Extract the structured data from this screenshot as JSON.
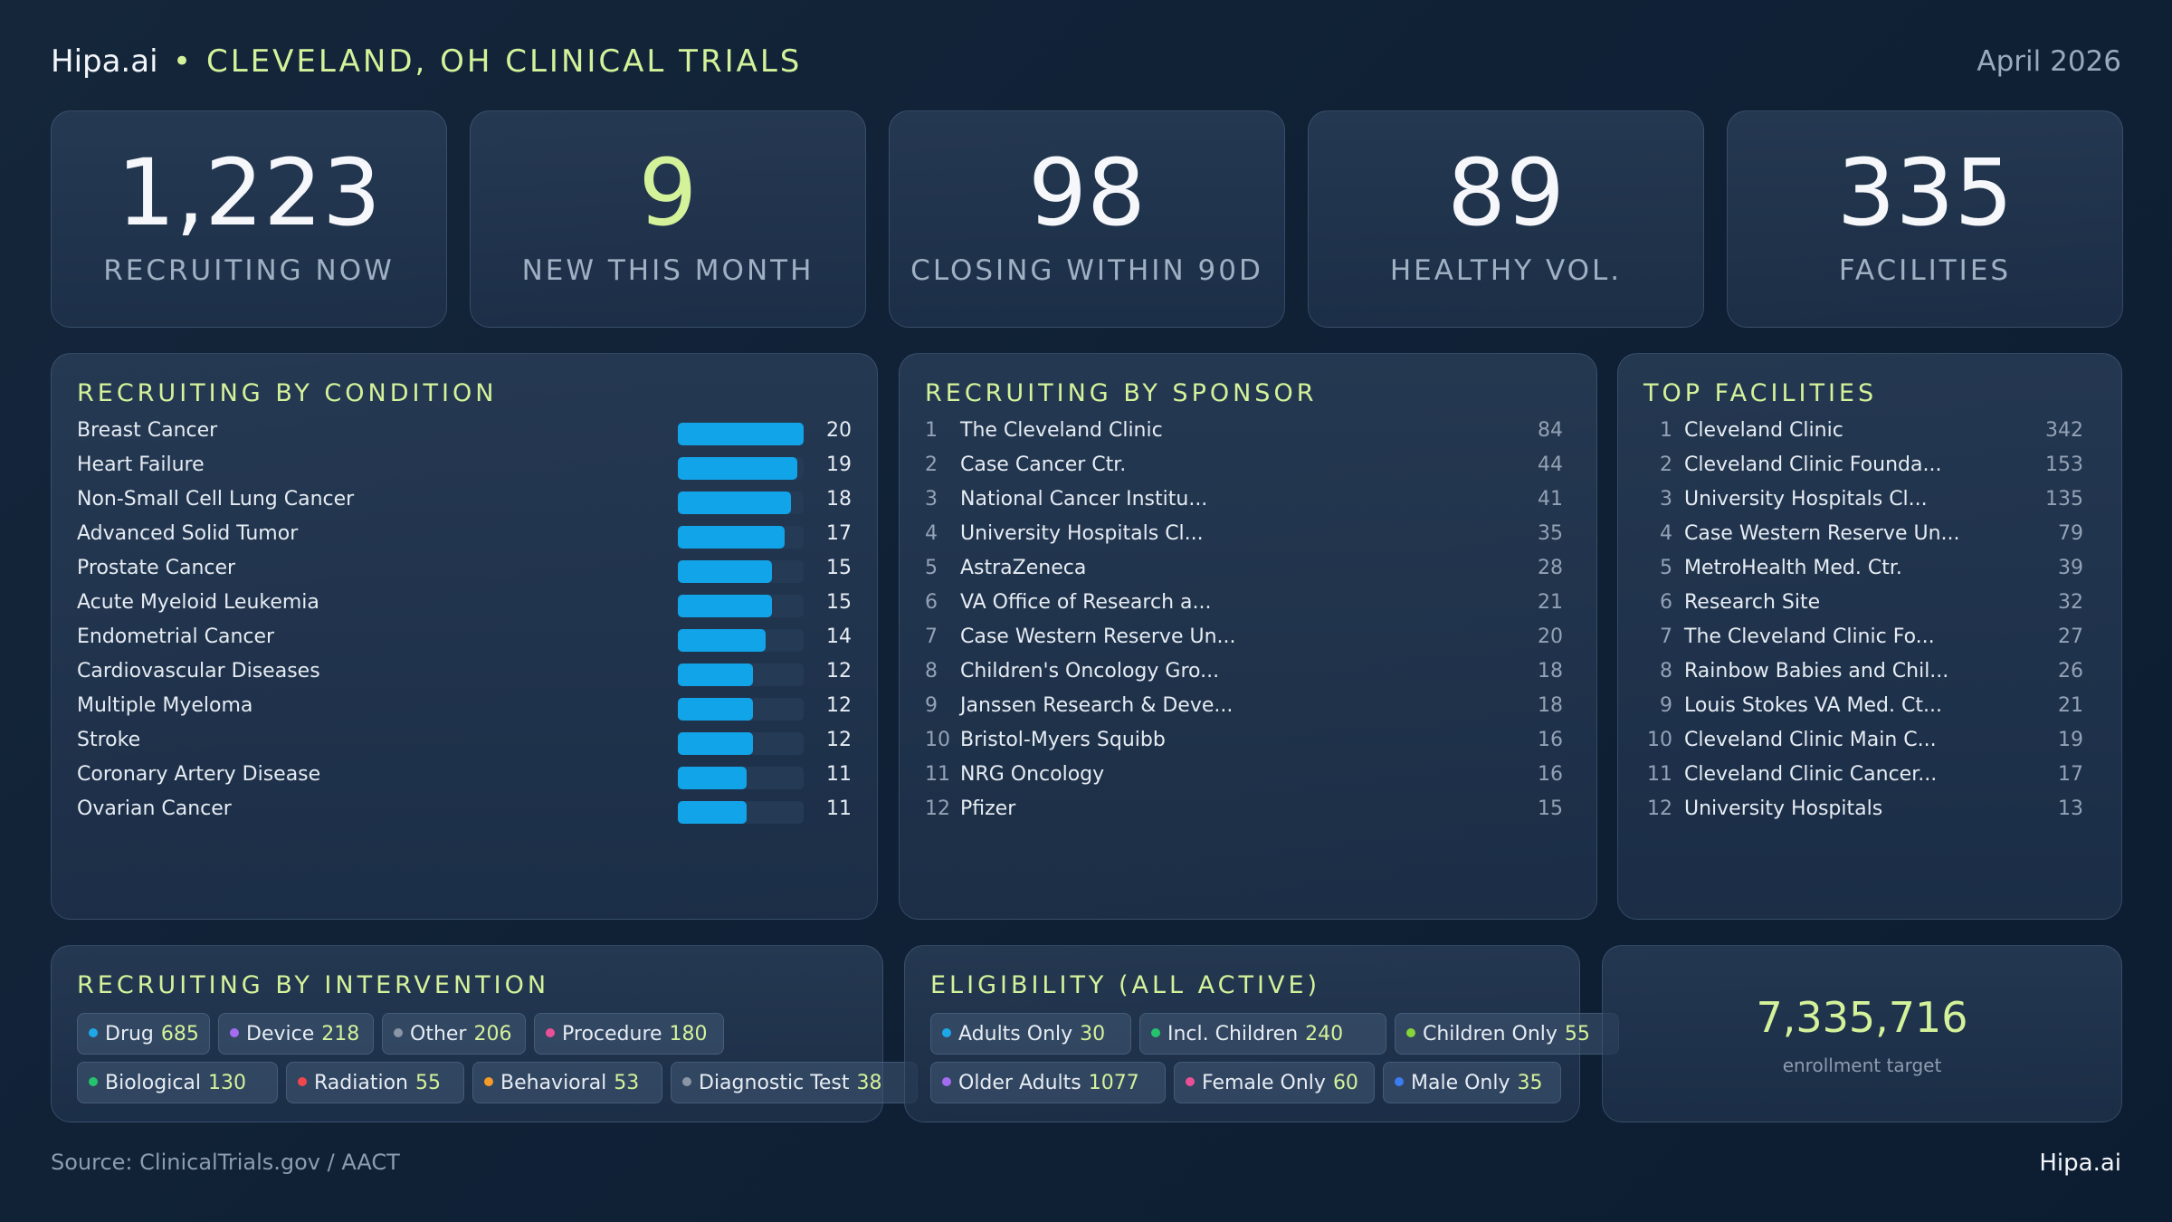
{
  "header": {
    "brand": "Hipa.ai",
    "separator": "•",
    "region": "CLEVELAND, OH CLINICAL TRIALS",
    "date": "April 2026"
  },
  "kpis": [
    {
      "value": "1,223",
      "label": "RECRUITING NOW",
      "accent": false
    },
    {
      "value": "9",
      "label": "NEW THIS MONTH",
      "accent": true
    },
    {
      "value": "98",
      "label": "CLOSING WITHIN 90D",
      "accent": false
    },
    {
      "value": "89",
      "label": "HEALTHY VOL.",
      "accent": false
    },
    {
      "value": "335",
      "label": "FACILITIES",
      "accent": false
    }
  ],
  "conditions": {
    "title": "RECRUITING BY CONDITION",
    "bar_color": "#12a4e8",
    "items": [
      {
        "name": "Breast Cancer",
        "value": 20
      },
      {
        "name": "Heart Failure",
        "value": 19
      },
      {
        "name": "Non-Small Cell Lung Cancer",
        "value": 18
      },
      {
        "name": "Advanced Solid Tumor",
        "value": 17
      },
      {
        "name": "Prostate Cancer",
        "value": 15
      },
      {
        "name": "Acute Myeloid Leukemia",
        "value": 15
      },
      {
        "name": "Endometrial Cancer",
        "value": 14
      },
      {
        "name": "Cardiovascular Diseases",
        "value": 12
      },
      {
        "name": "Multiple Myeloma",
        "value": 12
      },
      {
        "name": "Stroke",
        "value": 12
      },
      {
        "name": "Coronary Artery Disease",
        "value": 11
      },
      {
        "name": "Ovarian Cancer",
        "value": 11
      }
    ]
  },
  "sponsors": {
    "title": "RECRUITING BY SPONSOR",
    "items": [
      {
        "rank": "1",
        "name": "The Cleveland Clinic",
        "count": "84"
      },
      {
        "rank": "2",
        "name": "Case Cancer Ctr.",
        "count": "44"
      },
      {
        "rank": "3",
        "name": "National Cancer Institu...",
        "count": "41"
      },
      {
        "rank": "4",
        "name": "University Hospitals Cl...",
        "count": "35"
      },
      {
        "rank": "5",
        "name": "AstraZeneca",
        "count": "28"
      },
      {
        "rank": "6",
        "name": "VA Office of Research a...",
        "count": "21"
      },
      {
        "rank": "7",
        "name": "Case Western Reserve Un...",
        "count": "20"
      },
      {
        "rank": "8",
        "name": "Children's Oncology Gro...",
        "count": "18"
      },
      {
        "rank": "9",
        "name": "Janssen Research & Deve...",
        "count": "18"
      },
      {
        "rank": "10",
        "name": "Bristol-Myers Squibb",
        "count": "16"
      },
      {
        "rank": "11",
        "name": "NRG Oncology",
        "count": "16"
      },
      {
        "rank": "12",
        "name": "Pfizer",
        "count": "15"
      }
    ]
  },
  "facilities": {
    "title": "TOP FACILITIES",
    "items": [
      {
        "rank": "1",
        "name": "Cleveland Clinic",
        "count": "342"
      },
      {
        "rank": "2",
        "name": "Cleveland Clinic Founda...",
        "count": "153"
      },
      {
        "rank": "3",
        "name": "University Hospitals Cl...",
        "count": "135"
      },
      {
        "rank": "4",
        "name": "Case Western Reserve Un...",
        "count": "79"
      },
      {
        "rank": "5",
        "name": "MetroHealth Med. Ctr.",
        "count": "39"
      },
      {
        "rank": "6",
        "name": "Research Site",
        "count": "32"
      },
      {
        "rank": "7",
        "name": "The Cleveland Clinic Fo...",
        "count": "27"
      },
      {
        "rank": "8",
        "name": "Rainbow Babies and Chil...",
        "count": "26"
      },
      {
        "rank": "9",
        "name": "Louis Stokes VA Med. Ct...",
        "count": "21"
      },
      {
        "rank": "10",
        "name": "Cleveland Clinic Main C...",
        "count": "19"
      },
      {
        "rank": "11",
        "name": "Cleveland Clinic Cancer...",
        "count": "17"
      },
      {
        "rank": "12",
        "name": "University Hospitals",
        "count": "13"
      }
    ]
  },
  "interventions": {
    "title": "RECRUITING BY INTERVENTION",
    "items": [
      {
        "label": "Drug",
        "count": "685",
        "color": "#1fa8e8"
      },
      {
        "label": "Device",
        "count": "218",
        "color": "#a46cf0"
      },
      {
        "label": "Other",
        "count": "206",
        "color": "#8a96a6"
      },
      {
        "label": "Procedure",
        "count": "180",
        "color": "#ea4f98"
      },
      {
        "label": "Biological",
        "count": "130",
        "color": "#25c36d"
      },
      {
        "label": "Radiation",
        "count": "55",
        "color": "#f0474f"
      },
      {
        "label": "Behavioral",
        "count": "53",
        "color": "#f59b2a"
      },
      {
        "label": "Diagnostic Test",
        "count": "38",
        "color": "#8a96a6"
      }
    ]
  },
  "eligibility": {
    "title": "ELIGIBILITY (ALL ACTIVE)",
    "items": [
      {
        "label": "Adults Only",
        "count": "30",
        "color": "#1fa8e8"
      },
      {
        "label": "Incl. Children",
        "count": "240",
        "color": "#25c36d"
      },
      {
        "label": "Children Only",
        "count": "55",
        "color": "#86d43a"
      },
      {
        "label": "Older Adults",
        "count": "1077",
        "color": "#a46cf0"
      },
      {
        "label": "Female Only",
        "count": "60",
        "color": "#ea4f98"
      },
      {
        "label": "Male Only",
        "count": "35",
        "color": "#3b7cf0"
      }
    ]
  },
  "enrollment": {
    "value": "7,335,716",
    "label": "enrollment target"
  },
  "footer": {
    "source": "Source: ClinicalTrials.gov / AACT",
    "brand": "Hipa.ai"
  }
}
